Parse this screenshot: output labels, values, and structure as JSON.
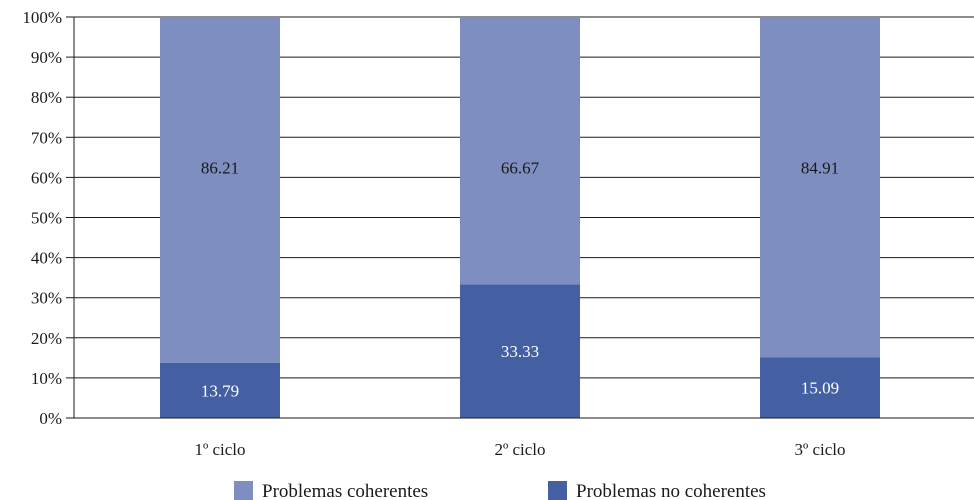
{
  "chart_data": {
    "type": "bar",
    "stacked": true,
    "percent_stacked": true,
    "categories": [
      "1º ciclo",
      "2º ciclo",
      "3º ciclo"
    ],
    "series": [
      {
        "name": "Problemas no coherentes",
        "values": [
          13.79,
          33.33,
          15.09
        ],
        "color": "#4460a3",
        "label_color": "#ffffff"
      },
      {
        "name": "Problemas coherentes",
        "values": [
          86.21,
          66.67,
          84.91
        ],
        "color": "#7f8ec0",
        "label_color": "#1a1a1a"
      }
    ],
    "y_ticks": [
      "0%",
      "10%",
      "20%",
      "30%",
      "40%",
      "50%",
      "60%",
      "70%",
      "80%",
      "90%",
      "100%"
    ],
    "ylim": [
      0,
      100
    ],
    "grid": true,
    "legend_position": "bottom",
    "legend_order": [
      "Problemas coherentes",
      "Problemas no coherentes"
    ]
  }
}
